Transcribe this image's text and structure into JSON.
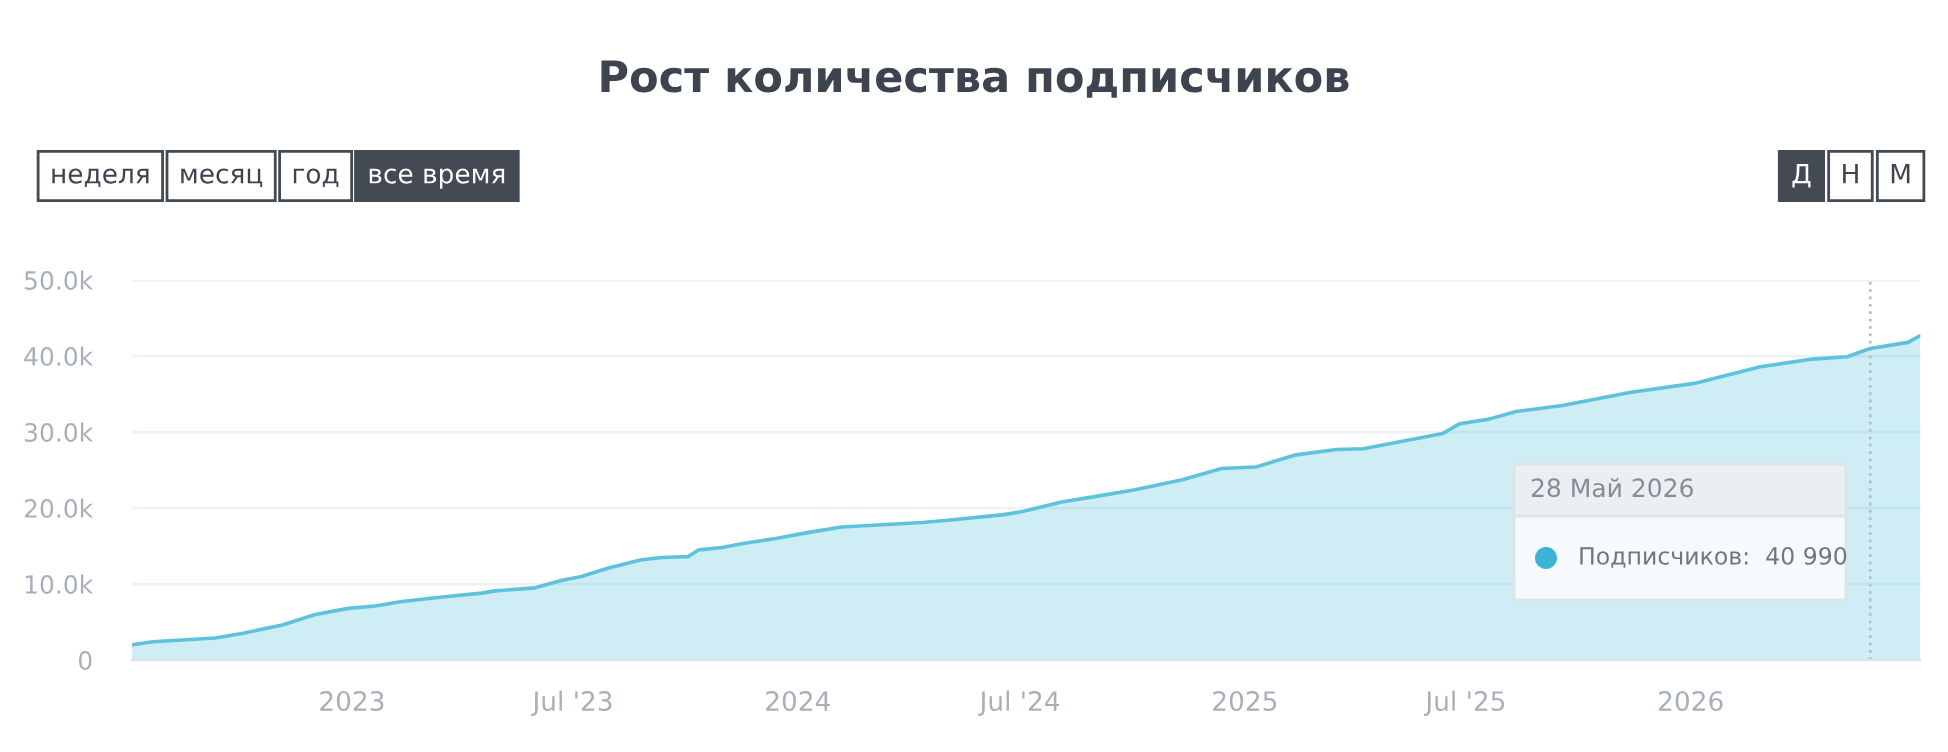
{
  "chart_data": {
    "type": "area",
    "title": "Рост количества подписчиков",
    "x": [
      "2022-07-05",
      "2022-07-22",
      "2022-09-11",
      "2022-10-03",
      "2022-11-05",
      "2022-12-02",
      "2022-12-29",
      "2023-01-20",
      "2023-02-11",
      "2023-03-16",
      "2023-04-17",
      "2023-04-28",
      "2023-05-31",
      "2023-06-22",
      "2023-07-08",
      "2023-07-30",
      "2023-08-26",
      "2023-09-12",
      "2023-10-03",
      "2023-10-12",
      "2023-10-31",
      "2023-11-16",
      "2023-12-14",
      "2024-01-10",
      "2024-02-06",
      "2024-02-28",
      "2024-04-12",
      "2024-05-03",
      "2024-06-16",
      "2024-07-02",
      "2024-08-04",
      "2024-08-31",
      "2024-10-03",
      "2024-11-10",
      "2024-12-13",
      "2025-01-10",
      "2025-02-12",
      "2025-03-17",
      "2025-04-08",
      "2025-05-10",
      "2025-06-12",
      "2025-06-26",
      "2025-07-20",
      "2025-08-11",
      "2025-09-18",
      "2025-11-12",
      "2026-01-04",
      "2026-02-27",
      "2026-04-11",
      "2026-05-09",
      "2026-05-28",
      "2026-06-28",
      "2026-07-08"
    ],
    "series": [
      {
        "color": "#5ec2dd",
        "values": [
          2000,
          2400,
          2900,
          3500,
          4600,
          6000,
          6800,
          7100,
          7700,
          8300,
          8800,
          9100,
          9500,
          10500,
          11000,
          12100,
          13200,
          13500,
          13600,
          14500,
          14800,
          15300,
          16000,
          16800,
          17500,
          17700,
          18100,
          18400,
          19100,
          19500,
          20800,
          21500,
          22400,
          23700,
          25200,
          25400,
          27000,
          27700,
          27800,
          28800,
          29800,
          31100,
          31700,
          32700,
          33500,
          35200,
          36400,
          38600,
          39600,
          39900,
          40990,
          41800,
          42700
        ]
      }
    ],
    "xlim": [
      "2022-07-05",
      "2026-07-08"
    ],
    "xticks": [
      {
        "value": "2023-01-01",
        "label": "2023"
      },
      {
        "value": "2023-07-01",
        "label": "Jul '23"
      },
      {
        "value": "2024-01-01",
        "label": "2024"
      },
      {
        "value": "2024-07-01",
        "label": "Jul '24"
      },
      {
        "value": "2025-01-01",
        "label": "2025"
      },
      {
        "value": "2025-07-01",
        "label": "Jul '25"
      },
      {
        "value": "2026-01-01",
        "label": "2026"
      }
    ],
    "ylim": [
      0,
      50000
    ],
    "yticks": [
      0,
      {
        "value": 10000,
        "label": "10.0k"
      },
      {
        "value": 20000,
        "label": "20.0k"
      },
      {
        "value": 30000,
        "label": "30.0k"
      },
      {
        "value": 40000,
        "label": "40.0k"
      },
      {
        "value": 50000,
        "label": "50.0k"
      }
    ],
    "grid": "y",
    "legend": false,
    "marker": "none",
    "line_style": "solid",
    "ref_lines": [
      {
        "axis": "x",
        "value": "2026-05-28",
        "color": "#b8bec6",
        "line_style": "dotted"
      }
    ],
    "annotations": [
      "28 Май 2026",
      "Подписчиков:  40 990",
      "неделя",
      "месяц",
      "год",
      "все время",
      "Д",
      "Н",
      "М"
    ]
  }
}
